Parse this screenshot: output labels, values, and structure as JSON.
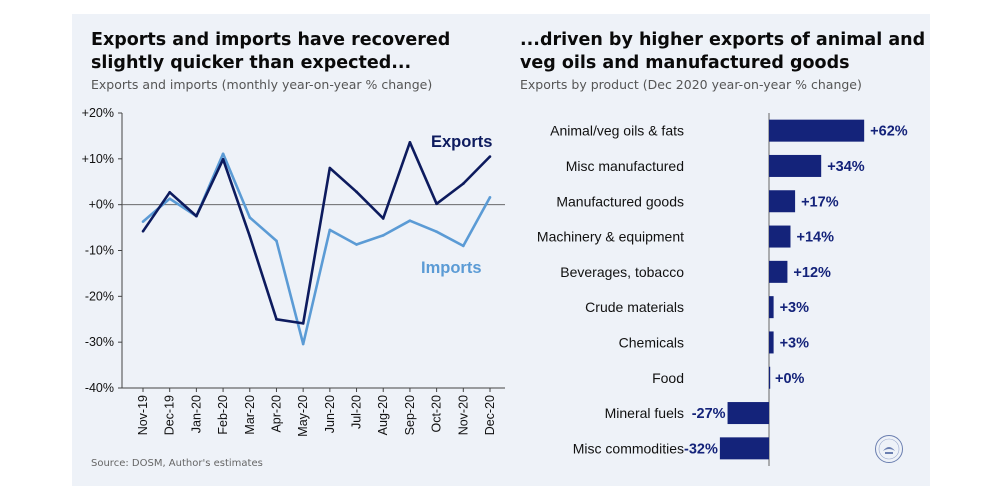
{
  "charts": {
    "left": {
      "title_line1": "Exports and imports have recovered",
      "title_line2": "slightly quicker than expected...",
      "subtitle": "Exports and imports (monthly year-on-year % change)",
      "source": "Source: DOSM, Author's estimates"
    },
    "right": {
      "title_line1": "...driven by higher exports of animal and",
      "title_line2": "veg oils and manufactured goods",
      "subtitle": "Exports by product (Dec 2020 year-on-year % change)"
    }
  },
  "colors": {
    "exports": "#0d1b5e",
    "imports": "#5b9bd5",
    "bars": "#14237a",
    "panel": "#eef2f8"
  },
  "chart_data": [
    {
      "type": "line",
      "title": "Exports and imports have recovered slightly quicker than expected...",
      "subtitle": "Exports and imports (monthly year-on-year % change)",
      "x": [
        "Nov-19",
        "Dec-19",
        "Jan-20",
        "Feb-20",
        "Mar-20",
        "Apr-20",
        "May-20",
        "Jun-20",
        "Jul-20",
        "Aug-20",
        "Sep-20",
        "Oct-20",
        "Nov-20",
        "Dec-20"
      ],
      "series": [
        {
          "name": "Exports",
          "values": [
            -5.8,
            2.7,
            -2.5,
            9.9,
            -6.9,
            -25.0,
            -25.9,
            8.0,
            2.8,
            -3.0,
            13.6,
            0.2,
            4.6,
            10.5
          ]
        },
        {
          "name": "Imports",
          "values": [
            -3.7,
            1.3,
            -2.5,
            11.1,
            -2.8,
            -7.9,
            -30.4,
            -5.5,
            -8.7,
            -6.7,
            -3.5,
            -5.9,
            -9.0,
            1.6
          ]
        }
      ],
      "yticks": [
        "+20%",
        "+10%",
        "+0%",
        "-10%",
        "-20%",
        "-30%",
        "-40%"
      ],
      "ylim": [
        -40,
        20
      ],
      "legend": "inline labels",
      "grid": false
    },
    {
      "type": "bar",
      "orientation": "horizontal",
      "title": "...driven by higher exports of animal and veg oils and manufactured goods",
      "subtitle": "Exports by product (Dec 2020 year-on-year % change)",
      "categories": [
        "Animal/veg oils & fats",
        "Misc manufactured",
        "Manufactured goods",
        "Machinery & equipment",
        "Beverages, tobacco",
        "Crude materials",
        "Chemicals",
        "Food",
        "Mineral fuels",
        "Misc commodities"
      ],
      "values": [
        62,
        34,
        17,
        14,
        12,
        3,
        3,
        0,
        -27,
        -32
      ],
      "labels": [
        "+62%",
        "+34%",
        "+17%",
        "+14%",
        "+12%",
        "+3%",
        "+3%",
        "+0%",
        "-27%",
        "-32%"
      ]
    }
  ]
}
